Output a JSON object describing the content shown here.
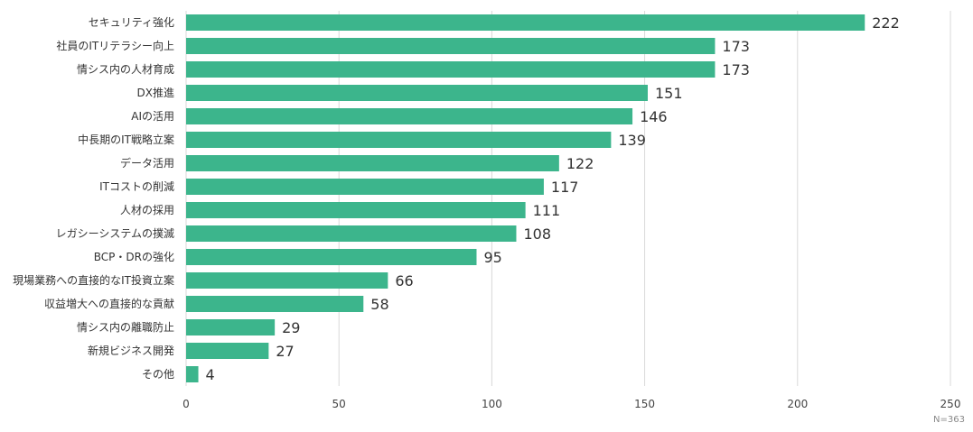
{
  "chart_data": {
    "type": "bar",
    "orientation": "horizontal",
    "categories": [
      "セキュリティ強化",
      "社員のITリテラシー向上",
      "情シス内の人材育成",
      "DX推進",
      "AIの活用",
      "中長期のIT戦略立案",
      "データ活用",
      "ITコストの削減",
      "人材の採用",
      "レガシーシステムの撲滅",
      "BCP・DRの強化",
      "現場業務への直接的なIT投資立案",
      "収益増大への直接的な貢献",
      "情シス内の離職防止",
      "新規ビジネス開発",
      "その他"
    ],
    "values": [
      222,
      173,
      173,
      151,
      146,
      139,
      122,
      117,
      111,
      108,
      95,
      66,
      58,
      29,
      27,
      4
    ],
    "xlim": [
      0,
      250
    ],
    "xticks": [
      0,
      50,
      100,
      150,
      200,
      250
    ],
    "bar_color": "#3cb58c",
    "grid": true,
    "note": "N=363",
    "title": "",
    "xlabel": "",
    "ylabel": ""
  }
}
